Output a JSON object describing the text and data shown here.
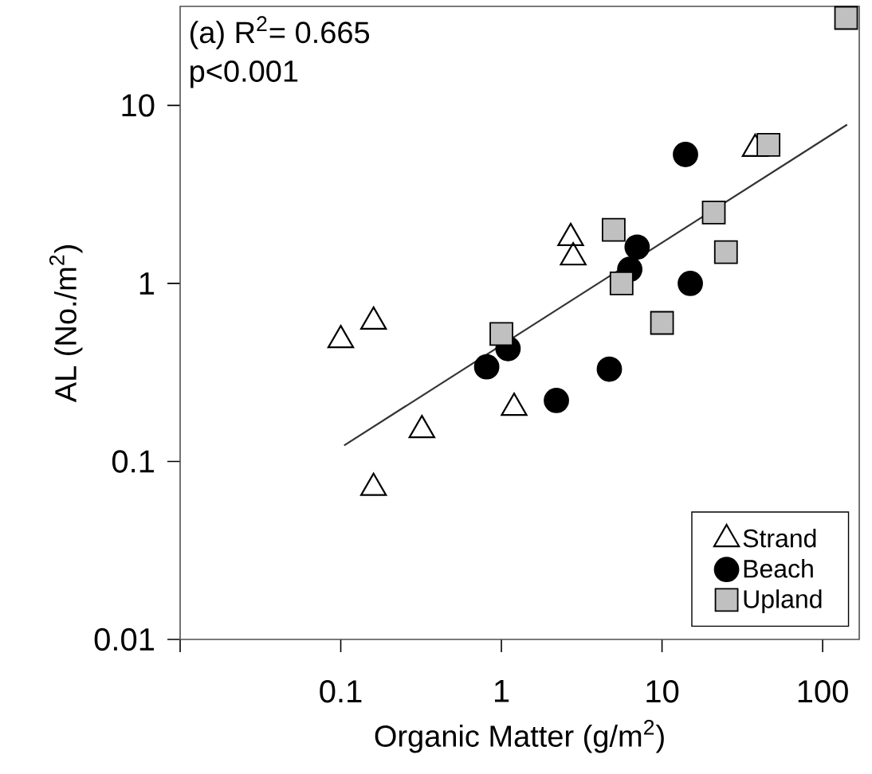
{
  "chart_data": {
    "type": "scatter",
    "xlabel": "Organic Matter (g/m$^{2}$)",
    "ylabel": "AL (No./m$^{2}$)",
    "log": "xy",
    "legend": "bottom right",
    "annotations": [
      "(a) R$^{2}$= 0.665",
      "p<0.001"
    ],
    "xlim": [
      0.01,
      169
    ],
    "ylim": [
      0.01,
      36
    ],
    "xticks": [
      {
        "value": 0.01,
        "label": null
      },
      0.1,
      1,
      10,
      100
    ],
    "yticks": [
      0.01,
      0.1,
      1,
      10
    ],
    "series": [
      {
        "name": "Strand",
        "color": "#000000",
        "marker": "triangle",
        "x": [
          0.1,
          0.16,
          0.32,
          0.16,
          1.2,
          2.7,
          2.8,
          38
        ],
        "values": [
          0.48,
          0.61,
          0.15,
          0.071,
          0.2,
          1.8,
          1.4,
          5.7
        ]
      },
      {
        "name": "Beach",
        "color": "#000000",
        "marker": "circle",
        "x": [
          14,
          7.0,
          6.3,
          15,
          1.1,
          0.81,
          4.7,
          2.2
        ],
        "values": [
          5.3,
          1.6,
          1.2,
          1.0,
          0.43,
          0.34,
          0.33,
          0.22
        ]
      },
      {
        "name": "Upland",
        "color": "#c0c0c0",
        "marker": "square",
        "x": [
          46,
          21,
          5.0,
          25,
          5.6,
          10,
          1.0,
          140
        ],
        "values": [
          6.0,
          2.5,
          2.0,
          1.5,
          1.0,
          0.6,
          0.52,
          31
        ]
      },
      {
        "type": "line",
        "color": "#333333",
        "marker": "none",
        "x": [
          0.105,
          142
        ],
        "values": [
          0.123,
          7.8
        ]
      }
    ]
  }
}
